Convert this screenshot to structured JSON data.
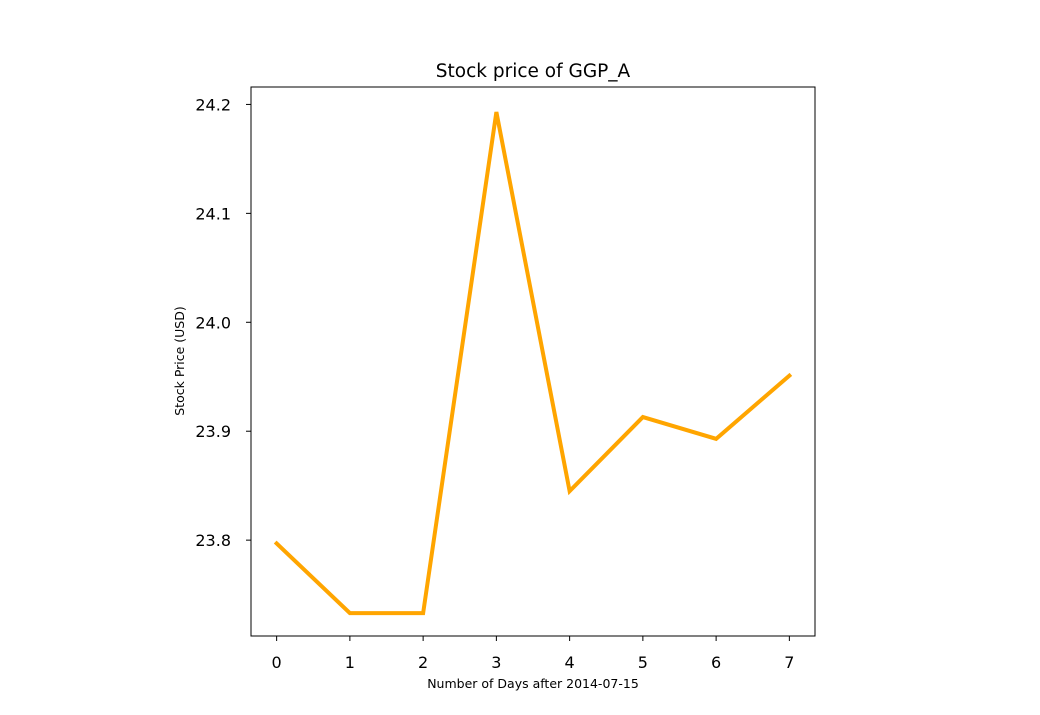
{
  "chart_data": {
    "type": "line",
    "title": "Stock price of GGP_A",
    "xlabel": "Number of Days after 2014-07-15",
    "ylabel": "Stock Price (USD)",
    "x": [
      0,
      1,
      2,
      3,
      4,
      5,
      6,
      7
    ],
    "series": [
      {
        "values": [
          23.797,
          23.733,
          23.733,
          24.193,
          23.845,
          23.913,
          23.893,
          23.951
        ],
        "color": "#FFA500"
      }
    ],
    "xticks": [
      "0",
      "1",
      "2",
      "3",
      "4",
      "5",
      "6",
      "7"
    ],
    "yticks": [
      "23.8",
      "23.9",
      "24.0",
      "24.1",
      "24.2"
    ],
    "xlim": [
      -0.35,
      7.35
    ],
    "ylim": [
      23.712,
      24.216
    ],
    "grid": false,
    "legend": "none"
  }
}
